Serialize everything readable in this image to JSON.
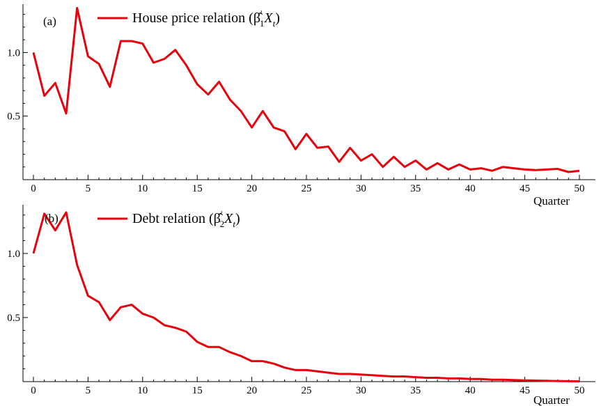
{
  "chart_data": [
    {
      "type": "line",
      "panel_label": "(a)",
      "legend": {
        "text": "House price relation (",
        "symbol_sub": "1",
        "var": "X",
        "var_sub": "t",
        "close": ")",
        "placement": "top-left"
      },
      "xlabel": "Quarter",
      "xlim": [
        0,
        50
      ],
      "ylim": [
        0,
        1.38
      ],
      "xticks": [
        0,
        5,
        10,
        15,
        20,
        25,
        30,
        35,
        40,
        45,
        50
      ],
      "yticks": [
        0.5,
        1.0
      ],
      "ytick_labels": [
        "0.5",
        "1.0"
      ],
      "line_color": "#e8000b",
      "series": [
        {
          "x": [
            0,
            1,
            2,
            3,
            4,
            5,
            6,
            7,
            8,
            9,
            10,
            11,
            12,
            13,
            14,
            15,
            16,
            17,
            18,
            19,
            20,
            21,
            22,
            23,
            24,
            25,
            26,
            27,
            28,
            29,
            30,
            31,
            32,
            33,
            34,
            35,
            36,
            37,
            38,
            39,
            40,
            41,
            42,
            43,
            44,
            45,
            46,
            47,
            48,
            49,
            50
          ],
          "values": [
            1.0,
            0.66,
            0.76,
            0.52,
            1.35,
            0.97,
            0.91,
            0.73,
            1.09,
            1.09,
            1.07,
            0.92,
            0.95,
            1.02,
            0.9,
            0.75,
            0.67,
            0.77,
            0.63,
            0.54,
            0.41,
            0.54,
            0.41,
            0.38,
            0.24,
            0.36,
            0.25,
            0.26,
            0.14,
            0.25,
            0.15,
            0.2,
            0.1,
            0.18,
            0.1,
            0.15,
            0.08,
            0.13,
            0.08,
            0.12,
            0.08,
            0.09,
            0.07,
            0.1,
            0.09,
            0.08,
            0.075,
            0.08,
            0.085,
            0.06,
            0.07
          ]
        }
      ]
    },
    {
      "type": "line",
      "panel_label": "(b)",
      "legend": {
        "text": "Debt relation (",
        "symbol_sub": "2",
        "var": "X",
        "var_sub": "t",
        "close": ")",
        "placement": "top-left"
      },
      "xlabel": "Quarter",
      "xlim": [
        0,
        50
      ],
      "ylim": [
        0,
        1.38
      ],
      "xticks": [
        0,
        5,
        10,
        15,
        20,
        25,
        30,
        35,
        40,
        45,
        50
      ],
      "yticks": [
        0.5,
        1.0
      ],
      "ytick_labels": [
        "0.5",
        "1.0"
      ],
      "line_color": "#e8000b",
      "series": [
        {
          "x": [
            0,
            1,
            2,
            3,
            4,
            5,
            6,
            7,
            8,
            9,
            10,
            11,
            12,
            13,
            14,
            15,
            16,
            17,
            18,
            19,
            20,
            21,
            22,
            23,
            24,
            25,
            26,
            27,
            28,
            29,
            30,
            31,
            32,
            33,
            34,
            35,
            36,
            37,
            38,
            39,
            40,
            41,
            42,
            43,
            44,
            45,
            46,
            47,
            48,
            49,
            50
          ],
          "values": [
            1.0,
            1.31,
            1.18,
            1.32,
            0.91,
            0.67,
            0.62,
            0.48,
            0.58,
            0.6,
            0.53,
            0.5,
            0.44,
            0.42,
            0.39,
            0.31,
            0.27,
            0.27,
            0.23,
            0.2,
            0.16,
            0.16,
            0.14,
            0.11,
            0.09,
            0.09,
            0.08,
            0.07,
            0.06,
            0.06,
            0.055,
            0.05,
            0.045,
            0.04,
            0.04,
            0.035,
            0.03,
            0.03,
            0.025,
            0.025,
            0.02,
            0.02,
            0.015,
            0.015,
            0.012,
            0.01,
            0.008,
            0.006,
            0.005,
            0.003,
            0.002
          ]
        }
      ]
    }
  ]
}
